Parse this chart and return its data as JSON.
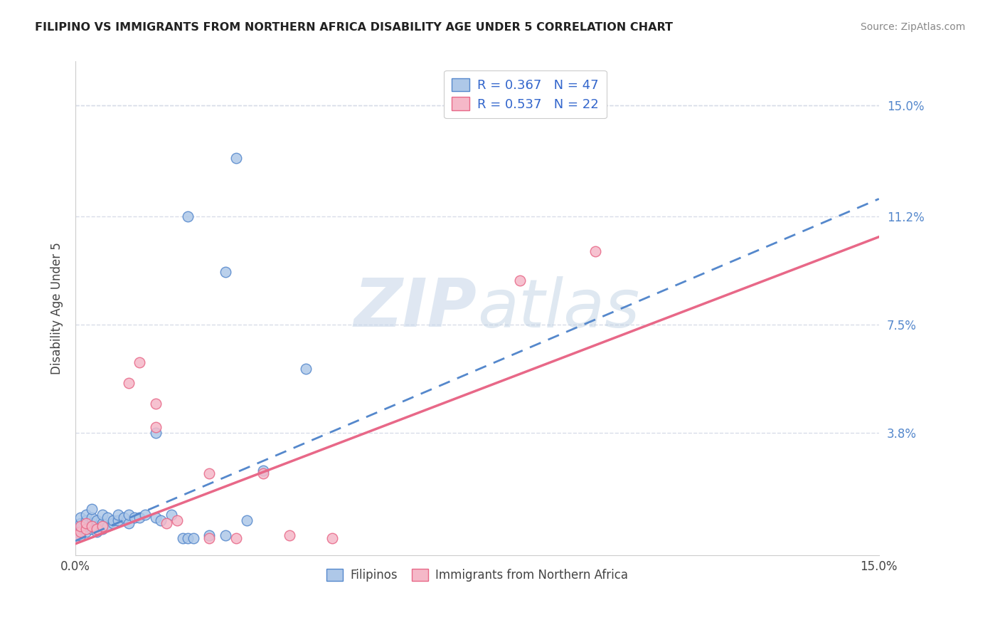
{
  "title": "FILIPINO VS IMMIGRANTS FROM NORTHERN AFRICA DISABILITY AGE UNDER 5 CORRELATION CHART",
  "source": "Source: ZipAtlas.com",
  "ylabel": "Disability Age Under 5",
  "ytick_labels": [
    "15.0%",
    "11.2%",
    "7.5%",
    "3.8%"
  ],
  "ytick_values": [
    0.15,
    0.112,
    0.075,
    0.038
  ],
  "xmin": 0.0,
  "xmax": 0.15,
  "ymin": -0.004,
  "ymax": 0.165,
  "filipino_color": "#aec8e8",
  "northern_africa_color": "#f5b8c8",
  "line_filipino_color": "#5588cc",
  "line_africa_color": "#e86888",
  "R_filipino": 0.367,
  "N_filipino": 47,
  "R_africa": 0.537,
  "N_africa": 22,
  "line_f_slope": 0.78,
  "line_f_intercept": 0.001,
  "line_a_slope": 0.7,
  "line_a_intercept": 0.0,
  "watermark_zip": "ZIP",
  "watermark_atlas": "atlas",
  "grid_color": "#d8dce8",
  "background_color": "#ffffff",
  "filipino_points": [
    [
      0.0,
      0.002
    ],
    [
      0.0,
      0.004
    ],
    [
      0.001,
      0.003
    ],
    [
      0.001,
      0.005
    ],
    [
      0.001,
      0.007
    ],
    [
      0.001,
      0.009
    ],
    [
      0.002,
      0.004
    ],
    [
      0.002,
      0.006
    ],
    [
      0.002,
      0.008
    ],
    [
      0.002,
      0.01
    ],
    [
      0.003,
      0.005
    ],
    [
      0.003,
      0.007
    ],
    [
      0.003,
      0.009
    ],
    [
      0.003,
      0.012
    ],
    [
      0.004,
      0.004
    ],
    [
      0.004,
      0.006
    ],
    [
      0.004,
      0.008
    ],
    [
      0.005,
      0.005
    ],
    [
      0.005,
      0.007
    ],
    [
      0.005,
      0.01
    ],
    [
      0.006,
      0.006
    ],
    [
      0.006,
      0.009
    ],
    [
      0.007,
      0.007
    ],
    [
      0.007,
      0.008
    ],
    [
      0.008,
      0.008
    ],
    [
      0.008,
      0.01
    ],
    [
      0.009,
      0.009
    ],
    [
      0.01,
      0.007
    ],
    [
      0.01,
      0.01
    ],
    [
      0.011,
      0.009
    ],
    [
      0.012,
      0.009
    ],
    [
      0.013,
      0.01
    ],
    [
      0.015,
      0.009
    ],
    [
      0.016,
      0.008
    ],
    [
      0.018,
      0.01
    ],
    [
      0.02,
      0.002
    ],
    [
      0.021,
      0.002
    ],
    [
      0.022,
      0.002
    ],
    [
      0.025,
      0.003
    ],
    [
      0.028,
      0.003
    ],
    [
      0.032,
      0.008
    ],
    [
      0.035,
      0.025
    ],
    [
      0.015,
      0.038
    ],
    [
      0.043,
      0.06
    ],
    [
      0.028,
      0.093
    ],
    [
      0.021,
      0.112
    ],
    [
      0.03,
      0.132
    ]
  ],
  "africa_points": [
    [
      0.0,
      0.003
    ],
    [
      0.001,
      0.004
    ],
    [
      0.001,
      0.006
    ],
    [
      0.002,
      0.005
    ],
    [
      0.002,
      0.007
    ],
    [
      0.003,
      0.006
    ],
    [
      0.004,
      0.005
    ],
    [
      0.005,
      0.006
    ],
    [
      0.01,
      0.055
    ],
    [
      0.012,
      0.062
    ],
    [
      0.015,
      0.048
    ],
    [
      0.015,
      0.04
    ],
    [
      0.017,
      0.007
    ],
    [
      0.019,
      0.008
    ],
    [
      0.025,
      0.024
    ],
    [
      0.025,
      0.002
    ],
    [
      0.03,
      0.002
    ],
    [
      0.035,
      0.024
    ],
    [
      0.04,
      0.003
    ],
    [
      0.048,
      0.002
    ],
    [
      0.083,
      0.09
    ],
    [
      0.097,
      0.1
    ]
  ]
}
